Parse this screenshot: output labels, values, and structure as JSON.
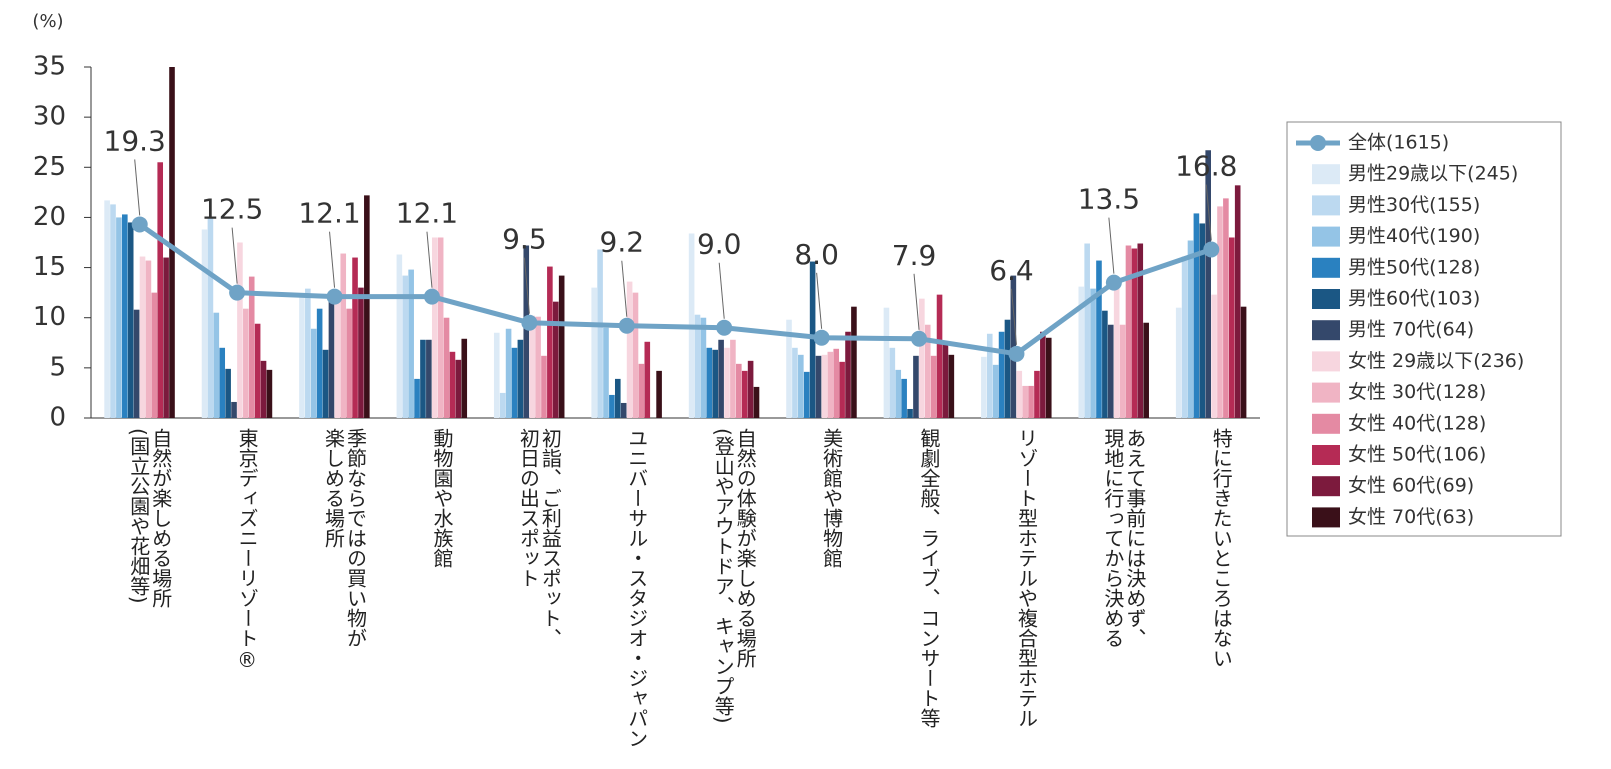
{
  "chart_data": {
    "type": "bar",
    "y_unit": "(%)",
    "categories": [
      "自然が楽しめる場所\n(国立公園や花畑等)",
      "東京ディズニーリゾート®",
      "季節ならではの買い物が\n楽しめる場所",
      "動物園や水族館",
      "初詣、ご利益スポット、\n初日の出スポット",
      "ユニバーサル・スタジオ・ジャパン",
      "自然の体験が楽しめる場所\n(登山やアウトドア、キャンプ等)",
      "美術館や博物館",
      "観劇全般、ライブ、コンサート等",
      "リゾート型ホテルや複合型ホテル",
      "あえて事前には決めず、\n現地に行ってから決める",
      "特に行きたいところはない"
    ],
    "ylim": [
      0,
      35
    ],
    "yticks": [
      0,
      5,
      10,
      15,
      20,
      25,
      30,
      35
    ],
    "series": [
      {
        "name": "全体(1615)",
        "type": "line",
        "color": "#6fa3c6",
        "values": [
          19.3,
          12.5,
          12.1,
          12.1,
          9.5,
          9.2,
          9.0,
          8.0,
          7.9,
          6.4,
          13.5,
          16.8
        ],
        "value_labels": [
          "19.3",
          "12.5",
          "12.1",
          "12.1",
          "9.5",
          "9.2",
          "9.0",
          "8.0",
          "7.9",
          "6.4",
          "13.5",
          "16.8"
        ]
      },
      {
        "name": "男性29歳以下(245)",
        "color": "#dceaf6",
        "values": [
          21.7,
          18.8,
          12.2,
          16.3,
          8.5,
          13.0,
          18.4,
          9.8,
          11.0,
          6.1,
          13.1,
          11.0
        ]
      },
      {
        "name": "男性30代(155)",
        "color": "#bcd9f0",
        "values": [
          21.3,
          20.0,
          12.9,
          14.2,
          2.5,
          16.8,
          10.3,
          7.0,
          7.0,
          8.4,
          17.4,
          16.1
        ]
      },
      {
        "name": "男性40代(190)",
        "color": "#94c4e6",
        "values": [
          20.0,
          10.5,
          8.9,
          14.8,
          8.9,
          9.0,
          10.0,
          6.3,
          4.8,
          5.3,
          12.9,
          17.7
        ]
      },
      {
        "name": "男性50代(128)",
        "color": "#2a81c0",
        "values": [
          20.3,
          7.0,
          10.9,
          3.9,
          7.0,
          2.3,
          7.0,
          4.6,
          3.9,
          8.6,
          15.7,
          20.4
        ]
      },
      {
        "name": "男性60代(103)",
        "color": "#1b5784",
        "values": [
          19.5,
          4.9,
          6.8,
          7.8,
          7.8,
          3.9,
          6.8,
          15.6,
          0.9,
          9.8,
          10.7,
          19.4
        ]
      },
      {
        "name": "男性 70代(64)",
        "color": "#34486b",
        "values": [
          10.8,
          1.6,
          12.5,
          7.8,
          17.2,
          1.5,
          7.8,
          6.2,
          6.2,
          14.2,
          9.3,
          26.7
        ]
      },
      {
        "name": "女性 29歳以下(236)",
        "color": "#f7d6df",
        "values": [
          16.1,
          17.5,
          11.6,
          18.0,
          10.2,
          13.6,
          7.0,
          6.3,
          11.9,
          4.7,
          13.0,
          12.3
        ]
      },
      {
        "name": "女性 30代(128)",
        "color": "#f0b4c4",
        "values": [
          15.7,
          10.9,
          16.4,
          18.0,
          10.1,
          12.5,
          7.8,
          6.6,
          9.3,
          3.2,
          9.3,
          21.1
        ]
      },
      {
        "name": "女性 40代(128)",
        "color": "#e48aa3",
        "values": [
          12.5,
          14.1,
          10.9,
          10.0,
          6.2,
          5.4,
          5.4,
          6.9,
          6.2,
          3.2,
          17.2,
          21.9
        ]
      },
      {
        "name": "女性 50代(106)",
        "color": "#b52b55",
        "values": [
          25.5,
          9.4,
          16.0,
          6.6,
          15.1,
          7.6,
          4.7,
          5.6,
          12.3,
          4.7,
          16.9,
          18.0
        ]
      },
      {
        "name": "女性 60代(69)",
        "color": "#7c1a3d",
        "values": [
          16.0,
          5.7,
          13.0,
          5.8,
          11.6,
          0,
          5.7,
          8.6,
          7.4,
          8.6,
          17.4,
          23.2
        ]
      },
      {
        "name": "女性 70代(63)",
        "color": "#3a1019",
        "values": [
          35.0,
          4.8,
          22.2,
          7.9,
          14.2,
          4.7,
          3.1,
          11.1,
          6.3,
          8.0,
          9.5,
          11.1
        ]
      }
    ]
  }
}
